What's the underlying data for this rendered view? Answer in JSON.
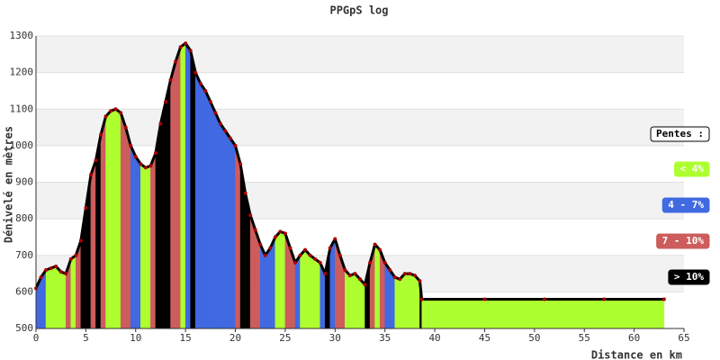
{
  "chart_data": {
    "type": "area",
    "title": "PPGpS log",
    "x_label": "Distance en km",
    "y_label": "Dénivelé en mètres",
    "xlim": [
      0,
      65
    ],
    "xticks": [
      0,
      5,
      10,
      15,
      20,
      25,
      30,
      35,
      40,
      45,
      50,
      55,
      60,
      65
    ],
    "ylim": [
      500,
      1300
    ],
    "yticks": [
      500,
      600,
      700,
      800,
      900,
      1000,
      1100,
      1200,
      1300
    ],
    "grid": true,
    "line_color": "#000000",
    "marker_color": "#aa0000",
    "x": [
      0,
      0.5,
      1,
      1.5,
      2,
      2.5,
      3,
      3.5,
      4,
      4.5,
      5,
      5.5,
      6,
      6.5,
      7,
      7.5,
      8,
      8.5,
      9,
      9.5,
      10,
      10.5,
      11,
      11.5,
      12,
      12.5,
      13,
      13.5,
      14,
      14.5,
      15,
      15.5,
      16,
      16.5,
      17,
      17.5,
      18,
      18.5,
      19,
      19.5,
      20,
      20.5,
      21,
      21.5,
      22,
      22.5,
      23,
      23.5,
      24,
      24.5,
      25,
      25.5,
      26,
      26.5,
      27,
      27.5,
      28,
      28.5,
      29,
      29.5,
      30,
      30.5,
      31,
      31.5,
      32,
      32.5,
      33,
      33.5,
      34,
      34.5,
      35,
      35.5,
      36,
      36.5,
      37,
      37.5,
      38,
      38.5,
      38.7,
      45,
      51,
      57,
      63
    ],
    "values": [
      610,
      640,
      660,
      665,
      670,
      655,
      650,
      690,
      700,
      740,
      830,
      920,
      960,
      1030,
      1080,
      1095,
      1100,
      1090,
      1050,
      1000,
      970,
      950,
      940,
      945,
      980,
      1060,
      1120,
      1180,
      1230,
      1270,
      1280,
      1260,
      1200,
      1170,
      1150,
      1120,
      1090,
      1060,
      1040,
      1020,
      1000,
      950,
      870,
      810,
      770,
      730,
      700,
      720,
      750,
      765,
      760,
      720,
      680,
      700,
      715,
      700,
      690,
      680,
      650,
      720,
      745,
      700,
      660,
      645,
      650,
      635,
      620,
      680,
      730,
      715,
      680,
      660,
      640,
      635,
      650,
      650,
      645,
      630,
      580,
      580,
      580,
      580,
      580
    ],
    "segment_colors": [
      "#4169e1",
      "#4169e1",
      "#adff2f",
      "#adff2f",
      "#adff2f",
      "#adff2f",
      "#cd5c5c",
      "#adff2f",
      "#cd5c5c",
      "#000000",
      "#000000",
      "#cd5c5c",
      "#000000",
      "#cd5c5c",
      "#adff2f",
      "#adff2f",
      "#adff2f",
      "#cd5c5c",
      "#cd5c5c",
      "#4169e1",
      "#4169e1",
      "#adff2f",
      "#adff2f",
      "#cd5c5c",
      "#000000",
      "#000000",
      "#000000",
      "#cd5c5c",
      "#cd5c5c",
      "#adff2f",
      "#4169e1",
      "#000000",
      "#4169e1",
      "#4169e1",
      "#4169e1",
      "#4169e1",
      "#4169e1",
      "#4169e1",
      "#4169e1",
      "#4169e1",
      "#cd5c5c",
      "#000000",
      "#000000",
      "#cd5c5c",
      "#cd5c5c",
      "#4169e1",
      "#4169e1",
      "#4169e1",
      "#adff2f",
      "#adff2f",
      "#cd5c5c",
      "#cd5c5c",
      "#4169e1",
      "#adff2f",
      "#adff2f",
      "#adff2f",
      "#adff2f",
      "#4169e1",
      "#000000",
      "#4169e1",
      "#cd5c5c",
      "#cd5c5c",
      "#adff2f",
      "#adff2f",
      "#adff2f",
      "#adff2f",
      "#000000",
      "#cd5c5c",
      "#adff2f",
      "#cd5c5c",
      "#4169e1",
      "#4169e1",
      "#adff2f",
      "#adff2f",
      "#adff2f",
      "#adff2f",
      "#adff2f",
      "#000000",
      "#adff2f",
      "#adff2f",
      "#adff2f",
      "#adff2f"
    ],
    "legend_title": "Pentes :",
    "legend": [
      {
        "name": "< 4%",
        "color": "#adff2f"
      },
      {
        "name": "4 - 7%",
        "color": "#4169e1"
      },
      {
        "name": "7 - 10%",
        "color": "#cd5c5c"
      },
      {
        "name": "> 10%",
        "color": "#000000"
      }
    ]
  }
}
